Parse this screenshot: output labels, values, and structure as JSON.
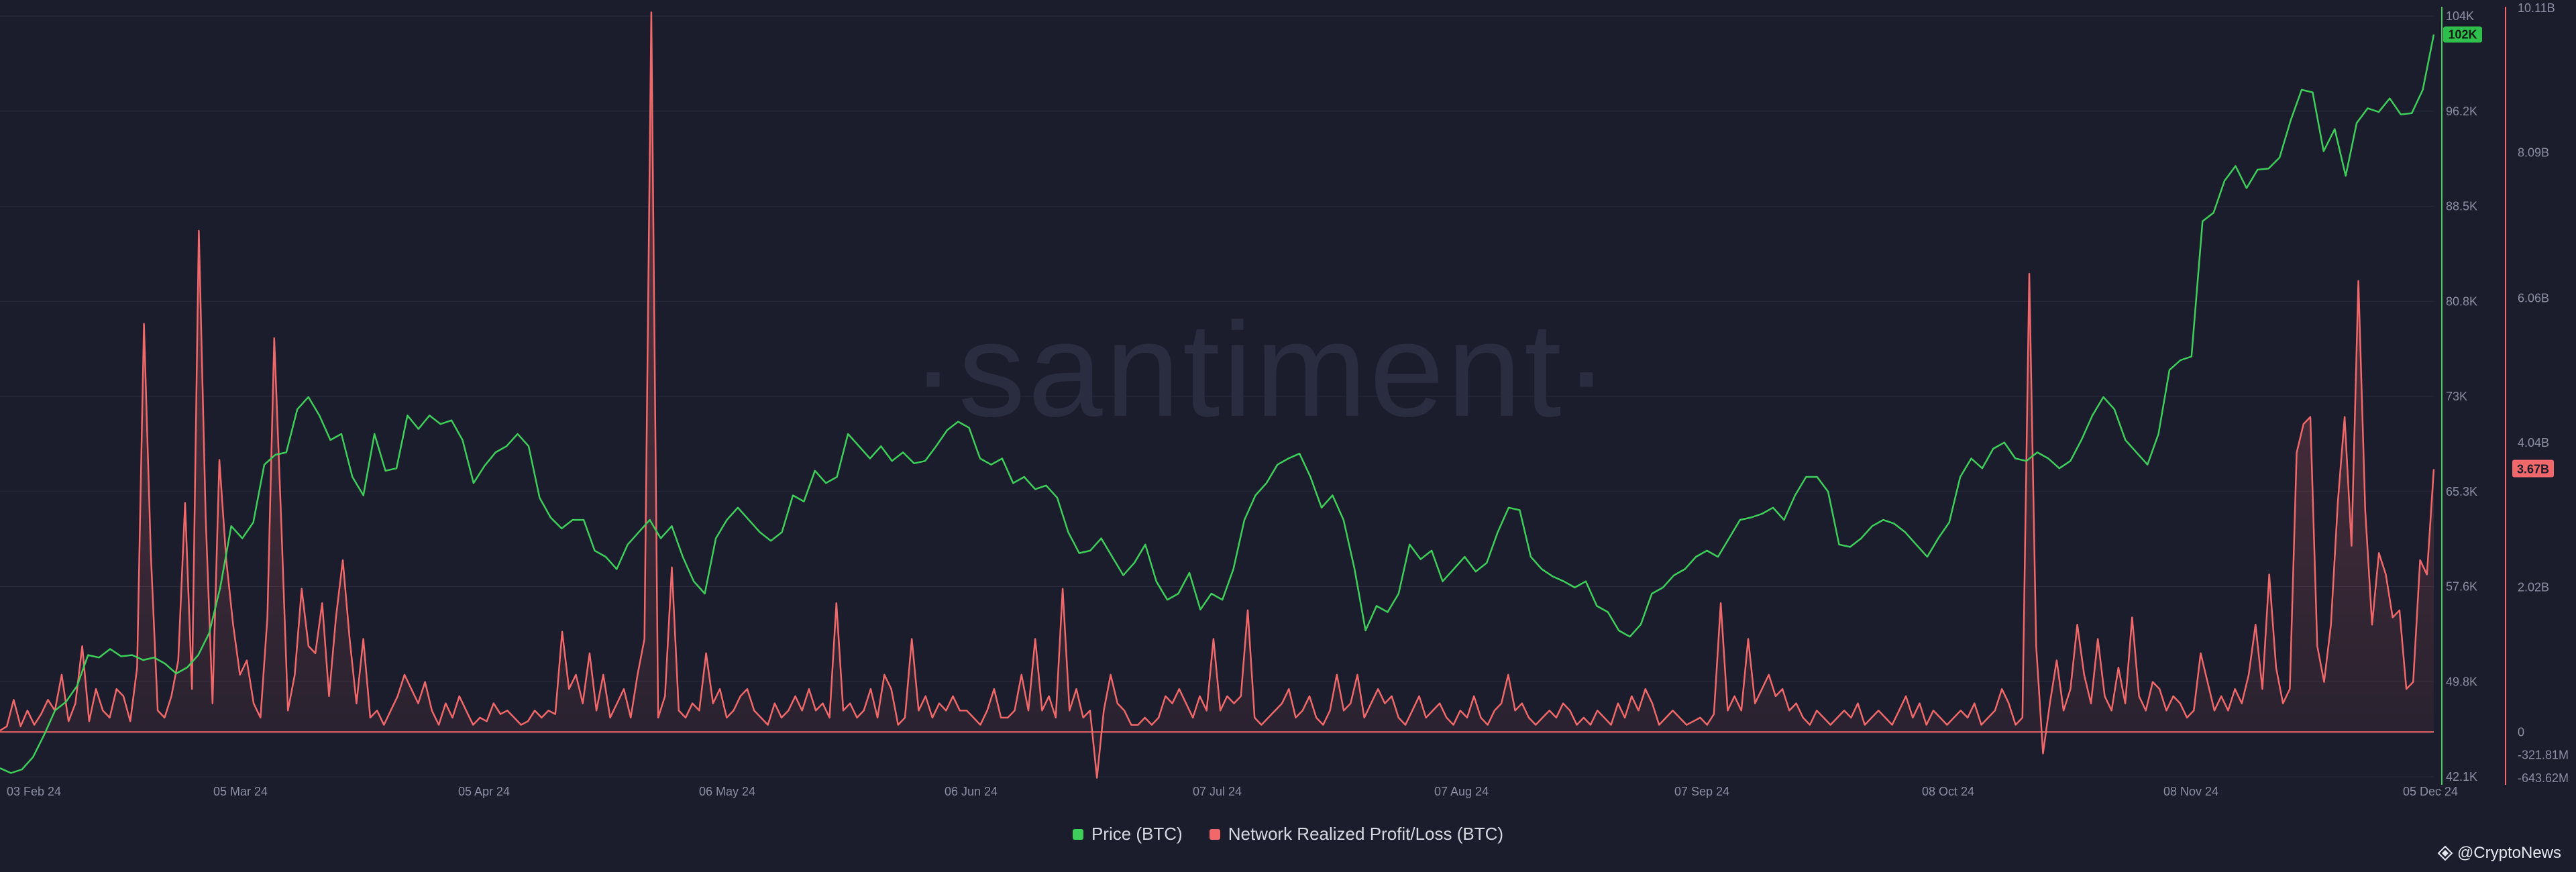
{
  "chart_data": {
    "type": "line",
    "watermark": "·santiment·",
    "x_tick_labels": [
      "03 Feb 24",
      "05 Mar 24",
      "05 Apr 24",
      "06 May 24",
      "06 Jun 24",
      "07 Jul 24",
      "07 Aug 24",
      "07 Sep 24",
      "08 Oct 24",
      "08 Nov 24",
      "05 Dec 24"
    ],
    "right_axis_price": {
      "labels": [
        "104K",
        "96.2K",
        "88.5K",
        "80.8K",
        "73K",
        "65.3K",
        "57.6K",
        "49.8K",
        "42.1K"
      ],
      "ylim": [
        42100,
        104000
      ],
      "current_tag": "102K"
    },
    "right_axis_profit": {
      "labels": [
        "10.11B",
        "8.09B",
        "6.06B",
        "4.04B",
        "2.02B",
        "0",
        "-321.81M",
        "-643.62M"
      ],
      "ylim": [
        -643620000,
        10110000000
      ],
      "current_tag": "3.67B"
    },
    "series": [
      {
        "name": "Price (BTC)",
        "color": "#3ecf5a",
        "unit": "USD",
        "values": [
          42800,
          42400,
          42700,
          43700,
          45500,
          47500,
          48200,
          49500,
          52000,
          51800,
          52500,
          51900,
          52000,
          51600,
          51800,
          51300,
          50500,
          51000,
          52000,
          53800,
          57500,
          62500,
          61500,
          62800,
          67500,
          68300,
          68500,
          72000,
          73000,
          71500,
          69500,
          70000,
          66500,
          65000,
          70000,
          67000,
          67200,
          71500,
          70400,
          71500,
          70800,
          71100,
          69500,
          66000,
          67400,
          68500,
          69000,
          70000,
          69000,
          64800,
          63200,
          62300,
          63000,
          63000,
          60500,
          60000,
          59000,
          61000,
          62000,
          63000,
          61500,
          62500,
          60000,
          58000,
          57000,
          61500,
          63000,
          64000,
          63000,
          62000,
          61300,
          62000,
          65000,
          64500,
          67000,
          66000,
          66500,
          70000,
          69000,
          68000,
          69000,
          67800,
          68500,
          67600,
          67800,
          69000,
          70300,
          71000,
          70500,
          68000,
          67500,
          68000,
          66000,
          66500,
          65500,
          65800,
          64800,
          62000,
          60300,
          60500,
          61500,
          60000,
          58500,
          59500,
          61000,
          58000,
          56500,
          57000,
          58700,
          55700,
          57000,
          56500,
          59000,
          63000,
          65000,
          66000,
          67500,
          68000,
          68400,
          66500,
          64000,
          65000,
          63000,
          59000,
          54000,
          56000,
          55500,
          57000,
          61000,
          59800,
          60500,
          58000,
          59000,
          60000,
          58800,
          59500,
          62000,
          64000,
          63800,
          60000,
          59000,
          58400,
          58000,
          57500,
          58000,
          56000,
          55500,
          54000,
          53500,
          54500,
          57000,
          57500,
          58500,
          59000,
          60000,
          60500,
          60000,
          61500,
          63000,
          63200,
          63500,
          64000,
          63000,
          65000,
          66500,
          66500,
          65300,
          61000,
          60800,
          61500,
          62500,
          63000,
          62700,
          62000,
          61000,
          60000,
          61500,
          62800,
          66500,
          68000,
          67200,
          68800,
          69300,
          68000,
          67800,
          68500,
          68000,
          67200,
          67800,
          69500,
          71500,
          73000,
          72000,
          69500,
          68500,
          67500,
          70000,
          75200,
          76000,
          76300,
          87300,
          88000,
          90600,
          91800,
          90000,
          91500,
          91600,
          92500,
          95500,
          98000,
          97800,
          93000,
          94800,
          91000,
          95300,
          96500,
          96200,
          97300,
          96000,
          96100,
          98000,
          102500
        ]
      },
      {
        "name": "Network Realized Profit/Loss (BTC)",
        "color": "#f0686a",
        "unit": "USD",
        "values": [
          20000000.0,
          80000000.0,
          450000000.0,
          80000000.0,
          300000000.0,
          100000000.0,
          250000000.0,
          450000000.0,
          300000000.0,
          800000000.0,
          150000000.0,
          400000000.0,
          1200000000.0,
          150000000.0,
          600000000.0,
          300000000.0,
          200000000.0,
          600000000.0,
          500000000.0,
          150000000.0,
          900000000.0,
          5700000000.0,
          2500000000.0,
          300000000.0,
          200000000.0,
          500000000.0,
          1000000000.0,
          3200000000.0,
          600000000.0,
          7000000000.0,
          3000000000.0,
          400000000.0,
          3800000000.0,
          2400000000.0,
          1500000000.0,
          800000000.0,
          1000000000.0,
          400000000.0,
          200000000.0,
          1600000000.0,
          5500000000.0,
          3000000000.0,
          300000000.0,
          800000000.0,
          2000000000.0,
          1200000000.0,
          1100000000.0,
          1800000000.0,
          500000000.0,
          1600000000.0,
          2400000000.0,
          1300000000.0,
          400000000.0,
          1300000000.0,
          200000000.0,
          300000000.0,
          100000000.0,
          300000000.0,
          500000000.0,
          800000000.0,
          600000000.0,
          400000000.0,
          700000000.0,
          300000000.0,
          100000000.0,
          400000000.0,
          200000000.0,
          500000000.0,
          300000000.0,
          100000000.0,
          200000000.0,
          150000000.0,
          400000000.0,
          250000000.0,
          300000000.0,
          200000000.0,
          100000000.0,
          150000000.0,
          300000000.0,
          200000000.0,
          300000000.0,
          250000000.0,
          1400000000.0,
          600000000.0,
          800000000.0,
          400000000.0,
          1100000000.0,
          300000000.0,
          800000000.0,
          200000000.0,
          400000000.0,
          600000000.0,
          200000000.0,
          800000000.0,
          1300000000.0,
          10050000000.0,
          200000000.0,
          500000000.0,
          2300000000.0,
          300000000.0,
          200000000.0,
          400000000.0,
          300000000.0,
          1100000000.0,
          400000000.0,
          600000000.0,
          200000000.0,
          300000000.0,
          500000000.0,
          600000000.0,
          300000000.0,
          200000000.0,
          100000000.0,
          400000000.0,
          200000000.0,
          300000000.0,
          500000000.0,
          300000000.0,
          600000000.0,
          300000000.0,
          400000000.0,
          200000000.0,
          1800000000.0,
          300000000.0,
          400000000.0,
          200000000.0,
          300000000.0,
          600000000.0,
          200000000.0,
          800000000.0,
          600000000.0,
          100000000.0,
          200000000.0,
          1300000000.0,
          300000000.0,
          500000000.0,
          200000000.0,
          400000000.0,
          300000000.0,
          500000000.0,
          300000000.0,
          300000000.0,
          200000000.0,
          100000000.0,
          300000000.0,
          600000000.0,
          200000000.0,
          200000000.0,
          300000000.0,
          800000000.0,
          300000000.0,
          1300000000.0,
          300000000.0,
          500000000.0,
          200000000.0,
          2000000000.0,
          300000000.0,
          600000000.0,
          200000000.0,
          300000000.0,
          -640000000.0,
          300000000.0,
          800000000.0,
          400000000.0,
          300000000.0,
          100000000.0,
          100000000.0,
          200000000.0,
          100000000.0,
          200000000.0,
          500000000.0,
          400000000.0,
          600000000.0,
          400000000.0,
          200000000.0,
          500000000.0,
          300000000.0,
          1300000000.0,
          300000000.0,
          500000000.0,
          400000000.0,
          500000000.0,
          1700000000.0,
          200000000.0,
          100000000.0,
          200000000.0,
          300000000.0,
          400000000.0,
          600000000.0,
          200000000.0,
          300000000.0,
          500000000.0,
          200000000.0,
          100000000.0,
          300000000.0,
          800000000.0,
          300000000.0,
          400000000.0,
          800000000.0,
          200000000.0,
          400000000.0,
          600000000.0,
          400000000.0,
          500000000.0,
          200000000.0,
          100000000.0,
          300000000.0,
          500000000.0,
          200000000.0,
          300000000.0,
          400000000.0,
          200000000.0,
          100000000.0,
          300000000.0,
          200000000.0,
          500000000.0,
          200000000.0,
          100000000.0,
          300000000.0,
          400000000.0,
          800000000.0,
          300000000.0,
          400000000.0,
          200000000.0,
          100000000.0,
          200000000.0,
          300000000.0,
          200000000.0,
          400000000.0,
          300000000.0,
          100000000.0,
          200000000.0,
          100000000.0,
          300000000.0,
          200000000.0,
          100000000.0,
          400000000.0,
          200000000.0,
          500000000.0,
          300000000.0,
          600000000.0,
          400000000.0,
          100000000.0,
          200000000.0,
          300000000.0,
          200000000.0,
          100000000.0,
          150000000.0,
          200000000.0,
          100000000.0,
          250000000.0,
          1800000000.0,
          300000000.0,
          500000000.0,
          300000000.0,
          1300000000.0,
          400000000.0,
          600000000.0,
          800000000.0,
          500000000.0,
          600000000.0,
          300000000.0,
          400000000.0,
          200000000.0,
          100000000.0,
          300000000.0,
          200000000.0,
          100000000.0,
          200000000.0,
          300000000.0,
          200000000.0,
          400000000.0,
          100000000.0,
          200000000.0,
          300000000.0,
          200000000.0,
          100000000.0,
          300000000.0,
          500000000.0,
          200000000.0,
          400000000.0,
          100000000.0,
          300000000.0,
          200000000.0,
          100000000.0,
          200000000.0,
          300000000.0,
          200000000.0,
          400000000.0,
          100000000.0,
          200000000.0,
          300000000.0,
          600000000.0,
          400000000.0,
          100000000.0,
          200000000.0,
          6400000000.0,
          1200000000.0,
          -300000000.0,
          400000000.0,
          1000000000.0,
          300000000.0,
          600000000.0,
          1500000000.0,
          800000000.0,
          400000000.0,
          1300000000.0,
          500000000.0,
          300000000.0,
          900000000.0,
          400000000.0,
          1600000000.0,
          500000000.0,
          300000000.0,
          700000000.0,
          600000000.0,
          300000000.0,
          500000000.0,
          400000000.0,
          200000000.0,
          300000000.0,
          1100000000.0,
          700000000.0,
          300000000.0,
          500000000.0,
          300000000.0,
          600000000.0,
          400000000.0,
          800000000.0,
          1500000000.0,
          600000000.0,
          2200000000.0,
          900000000.0,
          400000000.0,
          600000000.0,
          3900000000.0,
          4300000000.0,
          4400000000.0,
          1200000000.0,
          700000000.0,
          1500000000.0,
          3200000000.0,
          4400000000.0,
          2600000000.0,
          6300000000.0,
          3100000000.0,
          1500000000.0,
          2500000000.0,
          2200000000.0,
          1600000000.0,
          1700000000.0,
          600000000.0,
          700000000.0,
          2400000000.0,
          2200000000.0,
          3670000000.0
        ]
      }
    ],
    "legend": [
      "Price (BTC)",
      "Network Realized Profit/Loss (BTC)"
    ],
    "legend_placement": "bottom-center",
    "grid": true,
    "baseline_color": "#f0686a"
  },
  "brand": {
    "label": "@CryptoNews"
  }
}
